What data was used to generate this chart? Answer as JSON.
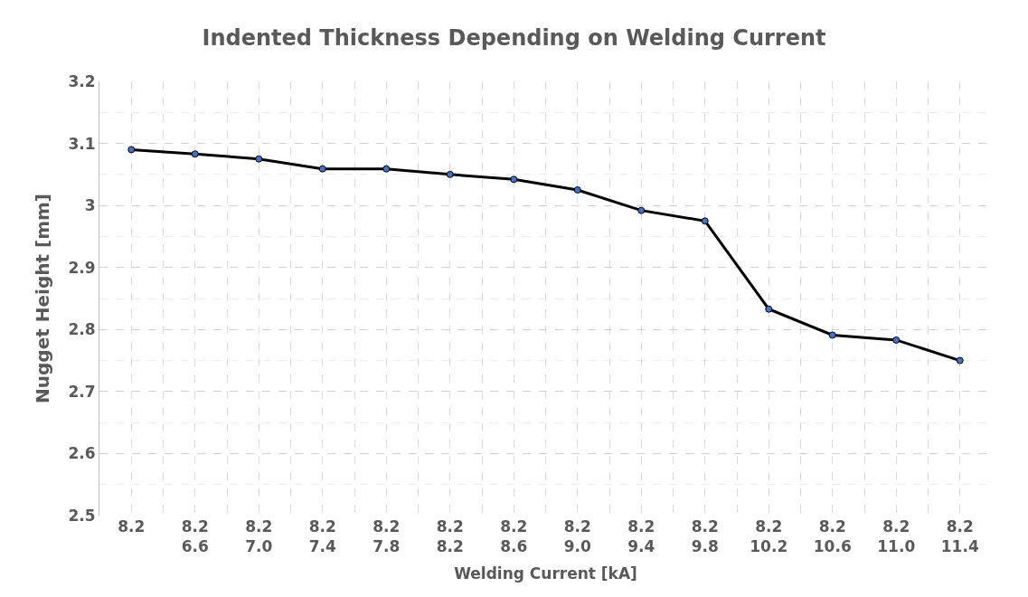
{
  "chart_data": {
    "type": "line",
    "title": "Indented Thickness Depending on Welding Current",
    "xlabel": "Welding Current [kA]",
    "ylabel": "Nugget Height [mm]",
    "categories": [
      "8.2",
      "8.2\n6.6",
      "8.2\n7.0",
      "8.2\n7.4",
      "8.2\n7.8",
      "8.2\n8.2",
      "8.2\n8.6",
      "8.2\n9.0",
      "8.2\n9.4",
      "8.2\n9.8",
      "8.2\n10.2",
      "8.2\n10.6",
      "8.2\n11.0",
      "8.2\n11.4"
    ],
    "series": [
      {
        "color": "#000000",
        "values": [
          3.09,
          3.083,
          3.075,
          3.059,
          3.059,
          3.05,
          3.042,
          3.025,
          2.992,
          2.975,
          2.833,
          2.791,
          2.783,
          2.75
        ]
      }
    ],
    "ylim": [
      2.5,
      3.2
    ],
    "yticks": [
      2.5,
      2.6,
      2.7,
      2.8,
      2.9,
      {
        "value": 3.0,
        "label": "3"
      },
      3.1,
      3.2
    ],
    "grid": true,
    "marker": "circle",
    "line_style": "solid"
  }
}
